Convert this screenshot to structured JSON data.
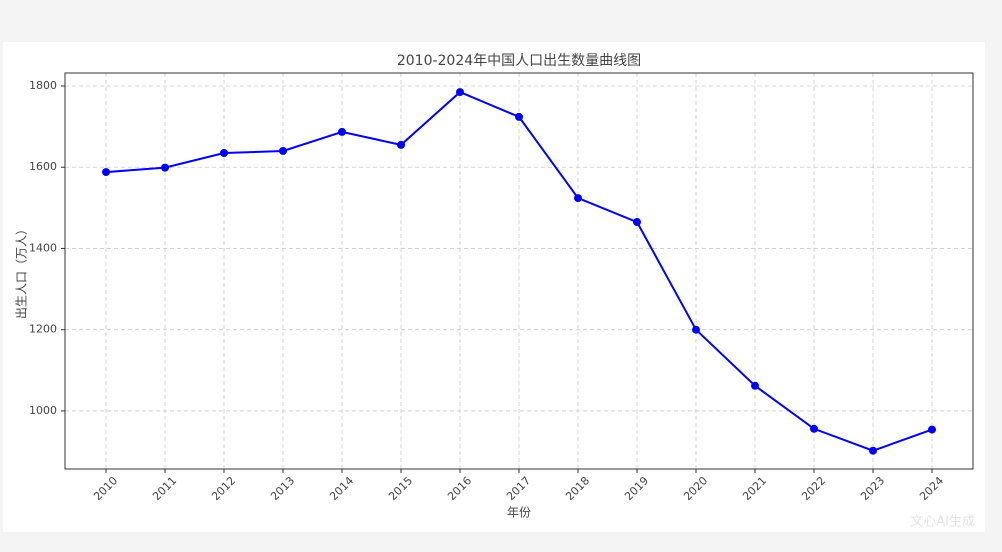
{
  "chart_data": {
    "type": "line",
    "title": "2010-2024年中国人口出生数量曲线图",
    "x_label": "年份",
    "y_label": "出生人口（万人）",
    "categories": [
      "2010",
      "2011",
      "2012",
      "2013",
      "2014",
      "2015",
      "2016",
      "2017",
      "2018",
      "2019",
      "2020",
      "2021",
      "2022",
      "2023",
      "2024"
    ],
    "series": [
      {
        "name": "出生人口",
        "color": "#0000ff",
        "values": [
          1588,
          1599,
          1635,
          1640,
          1687,
          1655,
          1785,
          1724,
          1524,
          1465,
          1200,
          1062,
          956,
          902,
          954
        ]
      }
    ],
    "ylim": [
      857,
      1832
    ],
    "yticks": [
      1000,
      1200,
      1400,
      1600,
      1800
    ],
    "grid": true,
    "watermark": "文心AI生成"
  }
}
